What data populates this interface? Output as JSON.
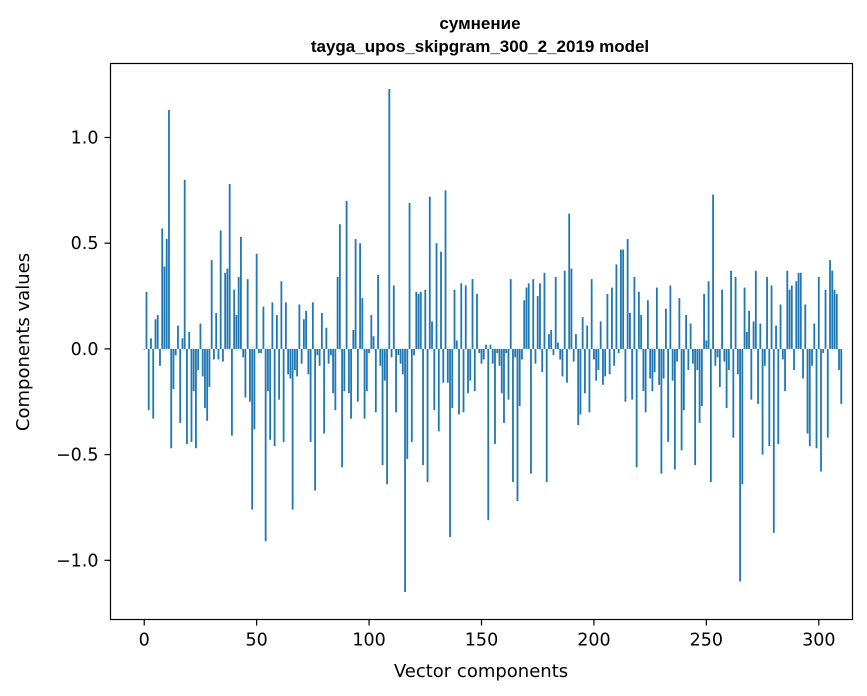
{
  "chart_data": {
    "type": "bar",
    "title_line1": "сумнение",
    "title_line2": "tayga_upos_skipgram_300_2_2019 model",
    "xlabel": "Vector components",
    "ylabel": "Components values",
    "xlim": [
      -15,
      315
    ],
    "ylim": [
      -1.28,
      1.35
    ],
    "x_ticks": [
      {
        "value": 0,
        "label": "0"
      },
      {
        "value": 50,
        "label": "50"
      },
      {
        "value": 100,
        "label": "100"
      },
      {
        "value": 150,
        "label": "150"
      },
      {
        "value": 200,
        "label": "200"
      },
      {
        "value": 250,
        "label": "250"
      },
      {
        "value": 300,
        "label": "300"
      }
    ],
    "y_ticks": [
      {
        "value": 1.0,
        "label": "1.0"
      },
      {
        "value": 0.5,
        "label": "0.5"
      },
      {
        "value": 0.0,
        "label": "0.0"
      },
      {
        "value": -0.5,
        "label": "−0.5"
      },
      {
        "value": -1.0,
        "label": "−1.0"
      }
    ],
    "bar_color": "#1f77b4",
    "values": [
      0.0,
      0.27,
      -0.29,
      0.05,
      -0.33,
      0.14,
      0.16,
      -0.08,
      0.57,
      0.39,
      0.52,
      1.13,
      -0.47,
      -0.19,
      -0.03,
      0.11,
      -0.35,
      0.05,
      0.8,
      -0.45,
      0.08,
      -0.44,
      -0.2,
      -0.47,
      -0.1,
      0.12,
      -0.13,
      -0.28,
      -0.34,
      -0.18,
      0.42,
      -0.05,
      0.17,
      -0.05,
      0.56,
      -0.06,
      0.36,
      0.38,
      0.78,
      -0.41,
      0.28,
      0.16,
      0.34,
      0.53,
      -0.04,
      -0.23,
      0.33,
      -0.25,
      -0.76,
      -0.38,
      0.45,
      -0.02,
      -0.02,
      0.2,
      -0.91,
      -0.2,
      -0.43,
      0.22,
      -0.46,
      0.16,
      -0.24,
      0.32,
      -0.44,
      0.22,
      -0.12,
      -0.14,
      -0.76,
      -0.1,
      -0.13,
      0.21,
      -0.07,
      0.14,
      0.18,
      -0.12,
      -0.44,
      0.22,
      -0.67,
      -0.03,
      -0.08,
      0.17,
      -0.4,
      0.1,
      -0.07,
      -0.03,
      -0.21,
      -0.29,
      0.34,
      0.59,
      -0.56,
      -0.2,
      0.7,
      -0.21,
      -0.33,
      0.09,
      0.52,
      -0.25,
      0.5,
      0.24,
      -0.33,
      -0.2,
      -0.02,
      0.16,
      0.06,
      -0.3,
      0.35,
      -0.08,
      -0.55,
      -0.15,
      -0.64,
      1.23,
      -0.04,
      0.3,
      -0.3,
      -0.03,
      -0.07,
      -0.12,
      -1.15,
      -0.52,
      0.69,
      -0.44,
      -0.03,
      0.27,
      0.26,
      0.27,
      -0.55,
      0.28,
      -0.63,
      0.72,
      0.13,
      -0.29,
      0.5,
      -0.39,
      0.46,
      -0.16,
      0.75,
      -0.16,
      -0.89,
      -0.28,
      0.28,
      0.04,
      -0.31,
      0.31,
      -0.3,
      0.3,
      -0.21,
      -0.15,
      0.33,
      -0.2,
      0.26,
      -0.02,
      -0.07,
      -0.05,
      0.02,
      -0.81,
      0.02,
      -0.07,
      -0.45,
      -0.02,
      -0.08,
      -0.21,
      -0.35,
      -0.02,
      -0.24,
      0.33,
      -0.63,
      -0.04,
      -0.72,
      -0.27,
      -0.05,
      0.23,
      0.29,
      0.31,
      -0.59,
      0.33,
      -0.07,
      0.25,
      0.31,
      -0.11,
      0.36,
      -0.63,
      0.07,
      0.09,
      -0.03,
      0.34,
      0.03,
      -0.05,
      -0.13,
      0.37,
      -0.16,
      0.64,
      0.38,
      -0.06,
      0.07,
      -0.36,
      -0.31,
      0.15,
      -0.21,
      0.11,
      -0.3,
      0.33,
      -0.05,
      -0.15,
      -0.1,
      0.13,
      -0.17,
      -0.13,
      0.26,
      -0.12,
      0.29,
      -0.08,
      0.4,
      -0.02,
      0.47,
      0.47,
      -0.25,
      0.52,
      0.17,
      -0.24,
      0.34,
      -0.56,
      0.27,
      0.16,
      -0.2,
      -0.3,
      0.23,
      -0.14,
      -0.2,
      -0.11,
      0.29,
      -0.17,
      -0.59,
      -0.14,
      0.19,
      -0.44,
      0.3,
      -0.15,
      -0.57,
      -0.06,
      0.24,
      -0.48,
      -0.29,
      0.16,
      -0.1,
      0.12,
      -0.07,
      -0.55,
      -0.1,
      -0.35,
      -0.27,
      0.26,
      0.04,
      0.32,
      -0.63,
      0.73,
      -0.08,
      -0.04,
      -0.18,
      0.28,
      -0.06,
      -0.28,
      -0.1,
      0.37,
      -0.42,
      0.34,
      -0.12,
      -1.1,
      -0.64,
      0.29,
      0.08,
      0.18,
      -0.24,
      0.13,
      0.37,
      -0.26,
      0.12,
      -0.5,
      -0.08,
      0.34,
      -0.46,
      0.3,
      -0.87,
      0.11,
      -0.45,
      0.21,
      -0.05,
      -0.2,
      0.37,
      0.28,
      0.3,
      -0.1,
      0.32,
      0.36,
      0.36,
      -0.14,
      0.21,
      -0.4,
      -0.46,
      -0.08,
      0.12,
      -0.47,
      0.34,
      -0.58,
      -0.02,
      0.28,
      -0.42,
      0.42,
      0.37,
      0.28,
      0.26,
      -0.1,
      -0.26
    ]
  }
}
